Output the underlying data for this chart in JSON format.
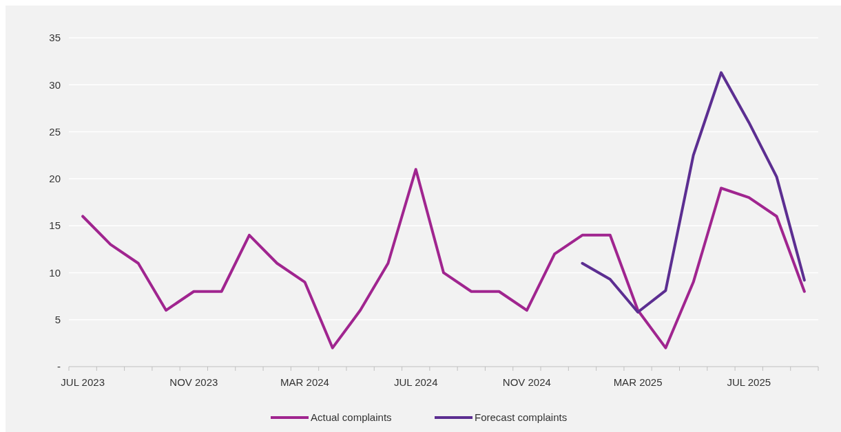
{
  "chart_data": {
    "type": "line",
    "categories": [
      "JUL 2023",
      null,
      null,
      null,
      "NOV 2023",
      null,
      null,
      null,
      "MAR 2024",
      null,
      null,
      null,
      "JUL 2024",
      null,
      null,
      null,
      "NOV 2024",
      null,
      null,
      null,
      "MAR 2025",
      null,
      null,
      null,
      "JUL 2025",
      null,
      null
    ],
    "series": [
      {
        "name": "Actual complaints",
        "color": "#a0258f",
        "values": [
          16,
          13,
          11,
          6,
          8,
          8,
          14,
          11,
          9,
          2,
          6,
          11,
          21,
          10,
          8,
          8,
          6,
          12,
          14,
          14,
          6,
          2,
          9,
          19,
          18,
          16,
          8
        ]
      },
      {
        "name": "Forecast complaints",
        "color": "#5c2e91",
        "values": [
          null,
          null,
          null,
          null,
          null,
          null,
          null,
          null,
          null,
          null,
          null,
          null,
          null,
          null,
          null,
          null,
          null,
          null,
          11,
          9.3,
          5.8,
          8.1,
          22.5,
          31.3,
          26,
          20.2,
          9.2
        ]
      }
    ],
    "ylim": [
      0,
      35
    ],
    "yticks": [
      {
        "value": 0,
        "label": "-"
      },
      5,
      10,
      15,
      20,
      25,
      30,
      35
    ],
    "grid": "y",
    "legend": "bottom",
    "line_style": "solid",
    "marker": "none"
  }
}
